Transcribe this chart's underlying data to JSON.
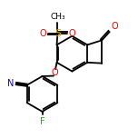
{
  "bg_color": "#ffffff",
  "line_color": "#000000",
  "color_O": "#ff0000",
  "color_N": "#0000ff",
  "color_F": "#00bb00",
  "color_S": "#ddaa00",
  "lw": 1.3,
  "fs": 6.5,
  "xlim": [
    -2.5,
    6.5
  ],
  "ylim": [
    -5.5,
    3.5
  ]
}
